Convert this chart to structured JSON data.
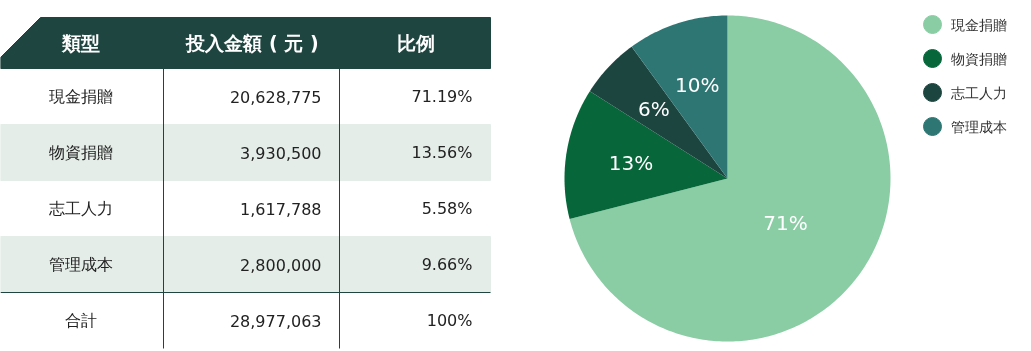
{
  "chart_data": [
    {
      "type": "other",
      "annotations": [
        "類型",
        "投入金額 ( 元 )",
        "比例",
        "現金捐贈",
        "20,628,775",
        "71.19%",
        "物資捐贈",
        "3,930,500",
        "13.56%",
        "志工人力",
        "1,617,788",
        "5.58%",
        "管理成本",
        "2,800,000",
        "9.66%",
        "合計",
        "28,977,063",
        "100%"
      ]
    },
    {
      "type": "pie",
      "categories": [
        "現金捐贈",
        "物資捐贈",
        "志工人力",
        "管理成本"
      ],
      "values": [
        71,
        13,
        6,
        10
      ],
      "value_labels": [
        "71%",
        "13%",
        "6%",
        "10%"
      ],
      "colors": [
        "#8acda4",
        "#07673a",
        "#1d4540",
        "#2e7674"
      ],
      "legend": "right"
    }
  ]
}
